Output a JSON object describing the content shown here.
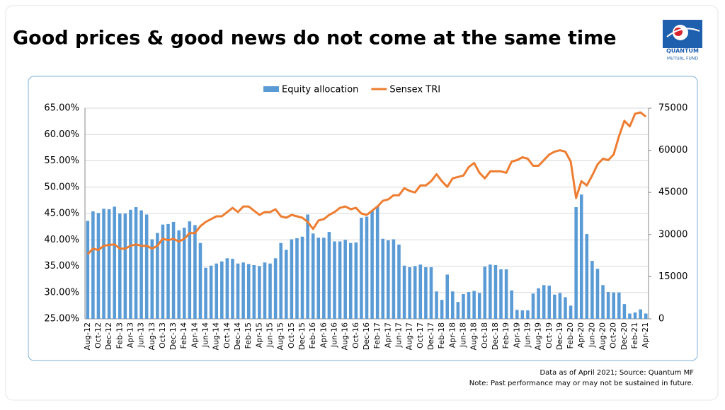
{
  "logo": {
    "name": "QUANTUM",
    "tagline": "MUTUAL FUND"
  },
  "chart_data": {
    "type": "bar-line",
    "title": "Good prices & good news do not come at the same time",
    "notes": [
      "Data as of April 2021; Source: Quantum MF",
      "Note: Past performance may or may not be sustained in future."
    ],
    "categories": [
      "Aug-12",
      null,
      "Oct-12",
      null,
      "Dec-12",
      null,
      "Feb-13",
      null,
      "Apr-13",
      null,
      "Jun-13",
      null,
      "Aug-13",
      null,
      "Oct-13",
      null,
      "Dec-13",
      null,
      "Feb-14",
      null,
      "Apr-14",
      null,
      "Jun-14",
      null,
      "Aug-14",
      null,
      "Oct-14",
      null,
      "Dec-14",
      null,
      "Feb-15",
      null,
      "Apr-15",
      null,
      "Jun-15",
      null,
      "Aug-15",
      null,
      "Oct-15",
      null,
      "Dec-15",
      null,
      "Feb-16",
      null,
      "Apr-16",
      null,
      "Jun-16",
      null,
      "Aug-16",
      null,
      "Oct-16",
      null,
      "Dec-16",
      null,
      "Feb-17",
      null,
      "Apr-17",
      null,
      "Jun-17",
      null,
      "Aug-17",
      null,
      "Oct-17",
      null,
      "Dec-17",
      null,
      "Feb-18",
      null,
      "Apr-18",
      null,
      "Jun-18",
      null,
      "Aug-18",
      null,
      "Oct-18",
      null,
      "Dec-18",
      null,
      "Feb-19",
      null,
      "Apr-19",
      null,
      "Jun-19",
      null,
      "Aug-19",
      null,
      "Oct-19",
      null,
      "Dec-19",
      null,
      "Feb-20",
      null,
      "Apr-20",
      null,
      "Jun-20",
      null,
      "Aug-20",
      null,
      "Oct-20",
      null,
      "Dec-20",
      null,
      "Feb-21",
      null,
      "Apr-21"
    ],
    "series": [
      {
        "name": "Equity allocation",
        "kind": "bar",
        "color": "#5b9bd5",
        "values": [
          43.6,
          45.4,
          45.1,
          45.9,
          45.8,
          46.3,
          45.0,
          45.0,
          45.7,
          46.2,
          45.6,
          44.8,
          40.1,
          41.3,
          42.9,
          43.0,
          43.4,
          41.8,
          42.3,
          43.5,
          42.8,
          39.4,
          34.7,
          35.1,
          35.5,
          35.9,
          36.5,
          36.4,
          35.5,
          35.7,
          35.4,
          35.2,
          35.0,
          35.7,
          35.5,
          36.5,
          39.4,
          38.1,
          40.1,
          40.3,
          40.6,
          44.8,
          41.2,
          40.4,
          40.4,
          41.5,
          39.7,
          39.7,
          40.0,
          39.4,
          39.5,
          44.2,
          44.4,
          45.5,
          46.4,
          40.2,
          39.9,
          40.1,
          39.1,
          35.1,
          34.8,
          35.0,
          35.3,
          34.8,
          34.8,
          30.2,
          28.6,
          33.4,
          30.2,
          28.2,
          29.7,
          30.1,
          30.3,
          29.9,
          34.9,
          35.3,
          35.2,
          34.4,
          34.4,
          30.4,
          26.7,
          26.6,
          26.6,
          29.8,
          30.8,
          31.4,
          31.3,
          29.6,
          29.9,
          29.1,
          27.5,
          46.2,
          48.6,
          41.1,
          36.0,
          34.5,
          31.4,
          30.1,
          30.0,
          30.0,
          27.8,
          26.0,
          26.2,
          26.8,
          26.0
        ]
      },
      {
        "name": "Sensex TRI",
        "kind": "line",
        "axis": "y2",
        "color": "#ed7d31",
        "values": [
          23000,
          25000,
          24500,
          26000,
          26300,
          26500,
          25000,
          25000,
          26000,
          26500,
          26000,
          26000,
          25000,
          26000,
          28500,
          28000,
          28500,
          27500,
          28500,
          30500,
          30500,
          33000,
          34500,
          35500,
          36500,
          36500,
          38000,
          39500,
          38000,
          40000,
          40000,
          38500,
          37000,
          38000,
          38000,
          39000,
          36500,
          36000,
          37000,
          36500,
          36000,
          34500,
          32000,
          35000,
          35500,
          37000,
          38000,
          39500,
          40000,
          39000,
          39500,
          37500,
          37000,
          38500,
          40000,
          42000,
          42500,
          44000,
          44000,
          46500,
          45500,
          45000,
          47500,
          47500,
          49000,
          51500,
          49000,
          47000,
          50000,
          50500,
          51000,
          54000,
          55500,
          52000,
          50000,
          52500,
          52500,
          52500,
          52000,
          56000,
          56500,
          57500,
          57000,
          54500,
          54500,
          56500,
          58500,
          59500,
          60000,
          59500,
          56000,
          43000,
          49000,
          47500,
          51000,
          55000,
          57000,
          56500,
          58500,
          65000,
          70500,
          68500,
          73000,
          73500,
          72000
        ]
      }
    ],
    "ylim": [
      25,
      65
    ],
    "yticks": [
      {
        "value": 25,
        "label": "25.00%"
      },
      {
        "value": 30,
        "label": "30.00%"
      },
      {
        "value": 35,
        "label": "35.00%"
      },
      {
        "value": 40,
        "label": "40.00%"
      },
      {
        "value": 45,
        "label": "45.00%"
      },
      {
        "value": 50,
        "label": "50.00%"
      },
      {
        "value": 55,
        "label": "55.00%"
      },
      {
        "value": 60,
        "label": "60.00%"
      },
      {
        "value": 65,
        "label": "65.00%"
      }
    ],
    "y2lim": [
      0,
      75000
    ],
    "y2ticks": [
      0,
      15000,
      30000,
      45000,
      60000,
      75000
    ],
    "grid": true,
    "legend": "top"
  }
}
